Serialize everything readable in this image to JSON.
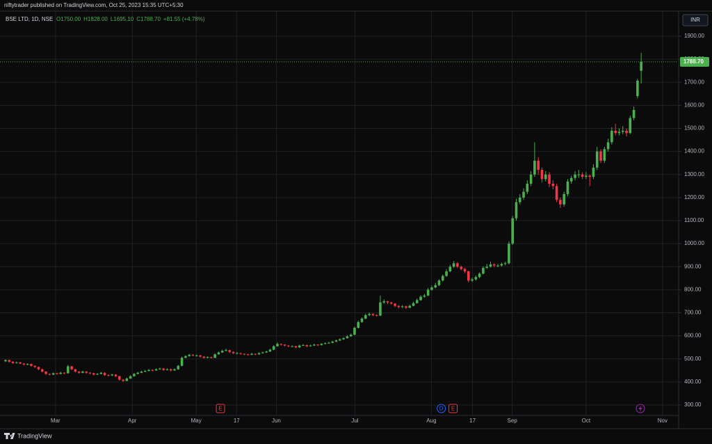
{
  "publisher": "niftytrader published on TradingView.com, Oct 25, 2023 15:35 UTC+5:30",
  "brand": "TradingView",
  "chart_data": {
    "type": "candlestick",
    "title": "BSE LTD, 1D, NSE",
    "ohlc_legend": [
      "O1750.00",
      "H1828.00",
      "L1695.10",
      "C1788.70",
      "+81.55 (+4.78%)"
    ],
    "currency": "INR",
    "up_color": "#4caf50",
    "down_color": "#f23645",
    "grid": true,
    "last_price": {
      "value": 1788.7,
      "label": "1788.70"
    },
    "ylim": [
      254.7,
      2008.7
    ],
    "yticks": [
      {
        "value": 300,
        "label": "300.00"
      },
      {
        "value": 400,
        "label": "400.00"
      },
      {
        "value": 500,
        "label": "500.00"
      },
      {
        "value": 600,
        "label": "600.00"
      },
      {
        "value": 700,
        "label": "700.00"
      },
      {
        "value": 800,
        "label": "800.00"
      },
      {
        "value": 900,
        "label": "900.00"
      },
      {
        "value": 1000,
        "label": "1000.00"
      },
      {
        "value": 1100,
        "label": "1100.00"
      },
      {
        "value": 1200,
        "label": "1200.00"
      },
      {
        "value": 1300,
        "label": "1300.00"
      },
      {
        "value": 1400,
        "label": "1400.00"
      },
      {
        "value": 1500,
        "label": "1500.00"
      },
      {
        "value": 1600,
        "label": "1600.00"
      },
      {
        "value": 1700,
        "label": "1700.00"
      },
      {
        "value": 1800,
        "label": "1800.00"
      },
      {
        "value": 1900,
        "label": "1900.00"
      }
    ],
    "xlim": [
      -1.5,
      183
    ],
    "xticks": [
      {
        "value": 13.6,
        "label": "Mar"
      },
      {
        "value": 34.5,
        "label": "Apr"
      },
      {
        "value": 51.9,
        "label": "May"
      },
      {
        "value": 62.9,
        "label": "17"
      },
      {
        "value": 73.7,
        "label": "Jun"
      },
      {
        "value": 95.1,
        "label": "Jul"
      },
      {
        "value": 115.9,
        "label": "Aug"
      },
      {
        "value": 127.1,
        "label": "17"
      },
      {
        "value": 137.9,
        "label": "Sep"
      },
      {
        "value": 158,
        "label": "Oct"
      },
      {
        "value": 178.8,
        "label": "Nov"
      }
    ],
    "events": [
      {
        "x": 58.5,
        "label": "E",
        "color": "#f23645",
        "shape": "square"
      },
      {
        "x": 118.6,
        "label": "D",
        "color": "#2962ff",
        "shape": "circle"
      },
      {
        "x": 121.8,
        "label": "E",
        "color": "#f23645",
        "shape": "square"
      }
    ],
    "values": [
      [
        490,
        498,
        486,
        495
      ],
      [
        495,
        497,
        484,
        488
      ],
      [
        488,
        490,
        479,
        482
      ],
      [
        482,
        489,
        480,
        485
      ],
      [
        485,
        487,
        477,
        480
      ],
      [
        480,
        482,
        472,
        476
      ],
      [
        476,
        481,
        473,
        478
      ],
      [
        478,
        480,
        467,
        470
      ],
      [
        470,
        472,
        461,
        465
      ],
      [
        465,
        467,
        451,
        455
      ],
      [
        455,
        458,
        441,
        445
      ],
      [
        445,
        447,
        431,
        435
      ],
      [
        435,
        437,
        428,
        432
      ],
      [
        432,
        441,
        430,
        438
      ],
      [
        438,
        440,
        431,
        435
      ],
      [
        435,
        444,
        433,
        440
      ],
      [
        440,
        442,
        434,
        438
      ],
      [
        438,
        474,
        436,
        468
      ],
      [
        468,
        470,
        451,
        455
      ],
      [
        455,
        457,
        441,
        445
      ],
      [
        445,
        447,
        436,
        440
      ],
      [
        440,
        449,
        438,
        445
      ],
      [
        445,
        447,
        436,
        440
      ],
      [
        440,
        443,
        434,
        438
      ],
      [
        438,
        440,
        428,
        432
      ],
      [
        432,
        439,
        430,
        435
      ],
      [
        435,
        444,
        433,
        440
      ],
      [
        440,
        442,
        426,
        430
      ],
      [
        430,
        433,
        424,
        428
      ],
      [
        428,
        436,
        426,
        432
      ],
      [
        432,
        434,
        421,
        425
      ],
      [
        425,
        427,
        406,
        410
      ],
      [
        410,
        413,
        400,
        405
      ],
      [
        405,
        419,
        403,
        415
      ],
      [
        415,
        429,
        413,
        425
      ],
      [
        425,
        439,
        423,
        435
      ],
      [
        435,
        444,
        433,
        440
      ],
      [
        440,
        449,
        438,
        445
      ],
      [
        445,
        452,
        442,
        448
      ],
      [
        448,
        456,
        446,
        452
      ],
      [
        452,
        455,
        446,
        450
      ],
      [
        450,
        459,
        448,
        455
      ],
      [
        455,
        462,
        453,
        458
      ],
      [
        458,
        461,
        448,
        452
      ],
      [
        452,
        459,
        450,
        455
      ],
      [
        455,
        458,
        446,
        450
      ],
      [
        450,
        459,
        448,
        455
      ],
      [
        455,
        474,
        453,
        470
      ],
      [
        470,
        510,
        468,
        505
      ],
      [
        505,
        516,
        503,
        512
      ],
      [
        512,
        522,
        510,
        518
      ],
      [
        518,
        521,
        511,
        515
      ],
      [
        515,
        519,
        511,
        515
      ],
      [
        515,
        518,
        506,
        510
      ],
      [
        510,
        512,
        501,
        505
      ],
      [
        505,
        512,
        503,
        508
      ],
      [
        508,
        510,
        501,
        505
      ],
      [
        505,
        524,
        503,
        520
      ],
      [
        520,
        532,
        518,
        528
      ],
      [
        528,
        540,
        526,
        535
      ],
      [
        535,
        545,
        533,
        538
      ],
      [
        538,
        540,
        526,
        530
      ],
      [
        530,
        533,
        521,
        525
      ],
      [
        525,
        530,
        521,
        525
      ],
      [
        525,
        527,
        518,
        522
      ],
      [
        522,
        524,
        516,
        520
      ],
      [
        520,
        522,
        514,
        518
      ],
      [
        518,
        526,
        516,
        522
      ],
      [
        522,
        524,
        516,
        520
      ],
      [
        520,
        529,
        518,
        525
      ],
      [
        525,
        532,
        523,
        528
      ],
      [
        528,
        536,
        526,
        532
      ],
      [
        532,
        544,
        530,
        540
      ],
      [
        540,
        559,
        538,
        555
      ],
      [
        555,
        572,
        553,
        565
      ],
      [
        565,
        567,
        558,
        562
      ],
      [
        562,
        564,
        554,
        558
      ],
      [
        558,
        560,
        551,
        555
      ],
      [
        555,
        559,
        551,
        555
      ],
      [
        555,
        557,
        546,
        550
      ],
      [
        550,
        562,
        548,
        558
      ],
      [
        558,
        564,
        556,
        560
      ],
      [
        560,
        562,
        551,
        555
      ],
      [
        555,
        562,
        553,
        558
      ],
      [
        558,
        566,
        556,
        562
      ],
      [
        562,
        564,
        556,
        560
      ],
      [
        560,
        569,
        558,
        565
      ],
      [
        565,
        572,
        563,
        568
      ],
      [
        568,
        574,
        566,
        570
      ],
      [
        570,
        579,
        568,
        575
      ],
      [
        575,
        584,
        573,
        580
      ],
      [
        580,
        589,
        578,
        585
      ],
      [
        585,
        594,
        583,
        590
      ],
      [
        590,
        602,
        588,
        598
      ],
      [
        598,
        610,
        596,
        605
      ],
      [
        605,
        640,
        603,
        635
      ],
      [
        635,
        666,
        632,
        660
      ],
      [
        660,
        680,
        657,
        675
      ],
      [
        675,
        696,
        672,
        690
      ],
      [
        690,
        702,
        686,
        695
      ],
      [
        695,
        698,
        685,
        690
      ],
      [
        690,
        694,
        683,
        688
      ],
      [
        688,
        775,
        686,
        745
      ],
      [
        745,
        758,
        740,
        750
      ],
      [
        750,
        752,
        738,
        745
      ],
      [
        745,
        748,
        735,
        740
      ],
      [
        740,
        742,
        724,
        730
      ],
      [
        730,
        733,
        718,
        725
      ],
      [
        725,
        733,
        720,
        728
      ],
      [
        728,
        731,
        716,
        722
      ],
      [
        722,
        736,
        720,
        730
      ],
      [
        730,
        748,
        728,
        742
      ],
      [
        742,
        762,
        740,
        755
      ],
      [
        755,
        776,
        752,
        770
      ],
      [
        770,
        782,
        765,
        775
      ],
      [
        775,
        808,
        772,
        800
      ],
      [
        800,
        818,
        796,
        810
      ],
      [
        810,
        830,
        806,
        820
      ],
      [
        820,
        846,
        816,
        840
      ],
      [
        840,
        866,
        836,
        860
      ],
      [
        860,
        888,
        856,
        880
      ],
      [
        880,
        908,
        876,
        900
      ],
      [
        900,
        925,
        895,
        915
      ],
      [
        915,
        920,
        894,
        900
      ],
      [
        900,
        905,
        884,
        890
      ],
      [
        890,
        895,
        872,
        880
      ],
      [
        880,
        884,
        832,
        840
      ],
      [
        840,
        852,
        834,
        845
      ],
      [
        845,
        862,
        840,
        855
      ],
      [
        855,
        876,
        850,
        870
      ],
      [
        870,
        902,
        866,
        895
      ],
      [
        895,
        912,
        890,
        900
      ],
      [
        900,
        922,
        896,
        910
      ],
      [
        910,
        915,
        898,
        905
      ],
      [
        905,
        912,
        898,
        905
      ],
      [
        905,
        918,
        900,
        912
      ],
      [
        912,
        922,
        906,
        915
      ],
      [
        915,
        1010,
        910,
        1000
      ],
      [
        1000,
        1120,
        995,
        1110
      ],
      [
        1110,
        1195,
        1100,
        1180
      ],
      [
        1180,
        1215,
        1170,
        1200
      ],
      [
        1200,
        1240,
        1190,
        1225
      ],
      [
        1225,
        1275,
        1215,
        1260
      ],
      [
        1260,
        1315,
        1250,
        1300
      ],
      [
        1300,
        1440,
        1290,
        1360
      ],
      [
        1360,
        1375,
        1300,
        1320
      ],
      [
        1320,
        1330,
        1265,
        1280
      ],
      [
        1280,
        1315,
        1270,
        1300
      ],
      [
        1300,
        1310,
        1245,
        1260
      ],
      [
        1260,
        1275,
        1235,
        1250
      ],
      [
        1250,
        1260,
        1180,
        1190
      ],
      [
        1190,
        1200,
        1155,
        1170
      ],
      [
        1170,
        1225,
        1160,
        1215
      ],
      [
        1215,
        1280,
        1205,
        1270
      ],
      [
        1270,
        1295,
        1260,
        1285
      ],
      [
        1285,
        1315,
        1275,
        1300
      ],
      [
        1300,
        1320,
        1285,
        1300
      ],
      [
        1300,
        1310,
        1280,
        1290
      ],
      [
        1290,
        1310,
        1280,
        1295
      ],
      [
        1295,
        1300,
        1250,
        1290
      ],
      [
        1290,
        1345,
        1280,
        1330
      ],
      [
        1330,
        1420,
        1320,
        1400
      ],
      [
        1400,
        1410,
        1350,
        1360
      ],
      [
        1360,
        1420,
        1350,
        1410
      ],
      [
        1410,
        1455,
        1400,
        1440
      ],
      [
        1440,
        1505,
        1430,
        1490
      ],
      [
        1490,
        1520,
        1470,
        1480
      ],
      [
        1480,
        1500,
        1470,
        1485
      ],
      [
        1485,
        1510,
        1475,
        1490
      ],
      [
        1490,
        1500,
        1465,
        1480
      ],
      [
        1480,
        1555,
        1475,
        1545
      ],
      [
        1545,
        1595,
        1535,
        1580
      ],
      [
        1640,
        1715,
        1630,
        1707.15
      ],
      [
        1750,
        1828,
        1695.1,
        1788.7
      ]
    ]
  }
}
